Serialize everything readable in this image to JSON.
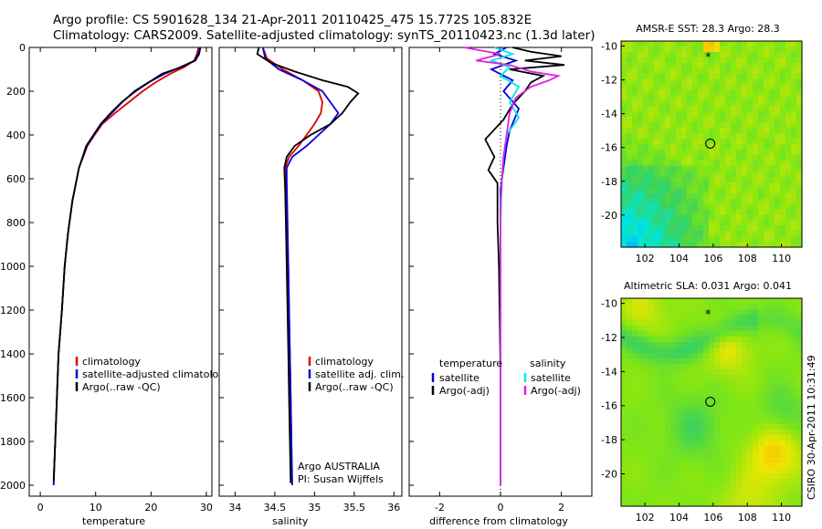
{
  "header": {
    "line1": "Argo profile: CS 5901628_134 21-Apr-2011 20110425_475 15.772S 105.832E",
    "line2": "Climatology: CARS2009. Satellite-adjusted climatology: synTS_20110423.nc (1.3d later)"
  },
  "colors": {
    "climatology": "#dd0000",
    "satellite": "#0000dd",
    "argo": "#000000",
    "satellite_salinity": "#00e5ee",
    "argo_salinity": "#e020e0"
  },
  "chart_data": [
    {
      "type": "line",
      "xlabel": "temperature",
      "ylabel": "",
      "xlim": [
        -2,
        31
      ],
      "ylim": [
        2050,
        0
      ],
      "xticks": [
        0,
        10,
        20,
        30
      ],
      "yticks": [
        0,
        200,
        400,
        600,
        800,
        1000,
        1200,
        1400,
        1600,
        1800,
        2000
      ],
      "legend": [
        "climatology",
        "satellite-adjusted climatology",
        "Argo(..raw -QC)"
      ],
      "series": [
        {
          "name": "climatology",
          "color": "#dd0000",
          "x": [
            28.6,
            28.3,
            27.8,
            26.0,
            23.5,
            20.8,
            18.5,
            16.0,
            13.5,
            11.2,
            9.8,
            8.5,
            7.0,
            5.8,
            5.0,
            4.4,
            3.9,
            3.3,
            3.0,
            2.7,
            2.4
          ],
          "y": [
            0,
            30,
            60,
            90,
            120,
            160,
            200,
            250,
            300,
            350,
            400,
            450,
            550,
            700,
            850,
            1000,
            1200,
            1400,
            1600,
            1800,
            2000
          ]
        },
        {
          "name": "satellite-adjusted climatology",
          "color": "#0000dd",
          "x": [
            28.8,
            28.5,
            27.9,
            25.3,
            22.5,
            19.5,
            17.0,
            14.8,
            12.9,
            11.0,
            9.7,
            8.4,
            7.0,
            5.8,
            5.0,
            4.4,
            3.9,
            3.3,
            3.0,
            2.7,
            2.4
          ],
          "y": [
            0,
            30,
            60,
            90,
            120,
            160,
            200,
            250,
            300,
            350,
            400,
            450,
            550,
            700,
            850,
            1000,
            1200,
            1400,
            1600,
            1800,
            2000
          ]
        },
        {
          "name": "Argo(..raw -QC)",
          "color": "#000000",
          "x": [
            28.9,
            28.7,
            28.0,
            25.5,
            22.0,
            19.6,
            17.2,
            14.7,
            12.7,
            10.9,
            9.6,
            8.3,
            7.0,
            5.8,
            5.0,
            4.4,
            3.9,
            3.3,
            3.0,
            2.7,
            2.4
          ],
          "y": [
            0,
            30,
            60,
            90,
            120,
            160,
            200,
            250,
            300,
            350,
            400,
            450,
            550,
            700,
            850,
            1000,
            1200,
            1400,
            1600,
            1800,
            1980
          ]
        }
      ]
    },
    {
      "type": "line",
      "xlabel": "salinity",
      "xlim": [
        33.8,
        36.1
      ],
      "ylim": [
        2050,
        0
      ],
      "xticks": [
        34,
        34.5,
        35,
        35.5,
        36
      ],
      "legend": [
        "climatology",
        "satellite adj. clim.",
        "Argo(..raw -QC)"
      ],
      "annotation": [
        "Argo AUSTRALIA",
        "PI: Susan Wijffels"
      ],
      "series": [
        {
          "name": "climatology",
          "color": "#dd0000",
          "x": [
            34.35,
            34.4,
            34.6,
            34.85,
            35.05,
            35.1,
            35.08,
            35.0,
            34.9,
            34.8,
            34.68,
            34.63,
            34.64,
            34.65,
            34.67,
            34.68,
            34.69,
            34.7,
            34.71,
            34.71
          ],
          "y": [
            0,
            50,
            100,
            150,
            200,
            250,
            300,
            350,
            400,
            450,
            500,
            550,
            600,
            800,
            1000,
            1200,
            1400,
            1600,
            1800,
            1900
          ]
        },
        {
          "name": "satellite adj. clim.",
          "color": "#0000dd",
          "x": [
            34.35,
            34.38,
            34.55,
            34.85,
            35.1,
            35.2,
            35.3,
            35.2,
            35.05,
            34.9,
            34.72,
            34.65,
            34.65,
            34.66,
            34.67,
            34.68,
            34.69,
            34.7,
            34.71,
            34.72
          ],
          "y": [
            0,
            50,
            100,
            150,
            200,
            250,
            300,
            350,
            400,
            450,
            500,
            550,
            600,
            800,
            1000,
            1200,
            1400,
            1600,
            1800,
            2000
          ]
        },
        {
          "name": "Argo(..raw -QC)",
          "color": "#000000",
          "x": [
            34.3,
            34.28,
            34.45,
            34.75,
            35.1,
            35.42,
            35.55,
            35.45,
            35.35,
            35.2,
            34.95,
            34.75,
            34.65,
            34.62,
            34.63,
            34.64,
            34.65,
            34.66,
            34.67,
            34.68,
            34.69,
            34.7
          ],
          "y": [
            0,
            30,
            70,
            110,
            150,
            180,
            210,
            250,
            300,
            350,
            400,
            450,
            500,
            550,
            650,
            800,
            1000,
            1200,
            1400,
            1600,
            1800,
            1990
          ]
        }
      ]
    },
    {
      "type": "line",
      "xlabel": "difference from climatology",
      "xlim": [
        -3.0,
        3.0
      ],
      "ylim": [
        2050,
        0
      ],
      "xticks": [
        -2,
        0,
        2
      ],
      "legend_temperature": {
        "heading": "temperature",
        "items": [
          "satellite",
          "Argo(-adj)"
        ]
      },
      "legend_salinity": {
        "heading": "salinity",
        "items": [
          "satellite",
          "Argo(-adj)"
        ]
      },
      "series": [
        {
          "name": "temperature satellite",
          "color": "#0000dd",
          "x": [
            0.2,
            -0.2,
            0.5,
            -0.3,
            0.4,
            0.1,
            0.6,
            0.3,
            0.2,
            0.1,
            0.0,
            0.0,
            0.0,
            0.0,
            0.0,
            0.0,
            0.0
          ],
          "y": [
            0,
            30,
            60,
            100,
            150,
            200,
            280,
            380,
            450,
            550,
            650,
            800,
            1000,
            1200,
            1500,
            1800,
            2000
          ]
        },
        {
          "name": "temperature Argo(-adj)",
          "color": "#000000",
          "x": [
            0.4,
            1.0,
            2.0,
            0.8,
            2.1,
            0.3,
            1.4,
            1.0,
            0.8,
            0.4,
            0.1,
            -0.5,
            -0.2,
            -0.4,
            -0.1,
            -0.1,
            -0.05,
            0.0,
            0.0
          ],
          "y": [
            0,
            20,
            40,
            60,
            80,
            100,
            130,
            160,
            200,
            260,
            330,
            420,
            500,
            560,
            620,
            800,
            1000,
            1500,
            1980
          ]
        },
        {
          "name": "salinity satellite",
          "color": "#00e5ee",
          "x": [
            -0.2,
            0.4,
            -0.3,
            0.3,
            0.0,
            0.6,
            0.3,
            0.6,
            0.2,
            0.1,
            0.05,
            0.0,
            0.0,
            0.0,
            0.0
          ],
          "y": [
            0,
            30,
            60,
            90,
            130,
            180,
            250,
            320,
            400,
            500,
            600,
            800,
            1200,
            1600,
            2000
          ]
        },
        {
          "name": "salinity Argo(-adj)",
          "color": "#e020e0",
          "x": [
            -1.2,
            0.0,
            -0.8,
            0.3,
            1.0,
            1.9,
            1.6,
            1.0,
            0.5,
            0.3,
            0.2,
            0.1,
            0.0,
            0.0,
            0.0,
            0.0
          ],
          "y": [
            0,
            30,
            60,
            80,
            110,
            130,
            150,
            180,
            230,
            300,
            400,
            500,
            700,
            1000,
            1500,
            2000
          ]
        }
      ]
    },
    {
      "type": "heatmap",
      "title": "AMSR-E SST: 28.3 Argo: 28.3",
      "xlim": [
        100.6,
        111.2
      ],
      "ylim": [
        -21.9,
        -9.7
      ],
      "xticks": [
        102,
        104,
        106,
        108,
        110
      ],
      "yticks": [
        -10,
        -12,
        -14,
        -16,
        -18,
        -20
      ],
      "argo_position": [
        105.83,
        -15.77
      ],
      "marker_position": [
        105.7,
        -10.5
      ]
    },
    {
      "type": "heatmap",
      "title": "Altimetric SLA: 0.031 Argo: 0.041",
      "xlim": [
        100.6,
        111.2
      ],
      "ylim": [
        -21.9,
        -9.7
      ],
      "xticks": [
        102,
        104,
        106,
        108,
        110
      ],
      "yticks": [
        -10,
        -12,
        -14,
        -16,
        -18,
        -20
      ],
      "argo_position": [
        105.83,
        -15.77
      ],
      "marker_position": [
        105.7,
        -10.5
      ]
    }
  ],
  "footer": {
    "credit": "CSIRO 30-Apr-2011 10:31:49"
  }
}
